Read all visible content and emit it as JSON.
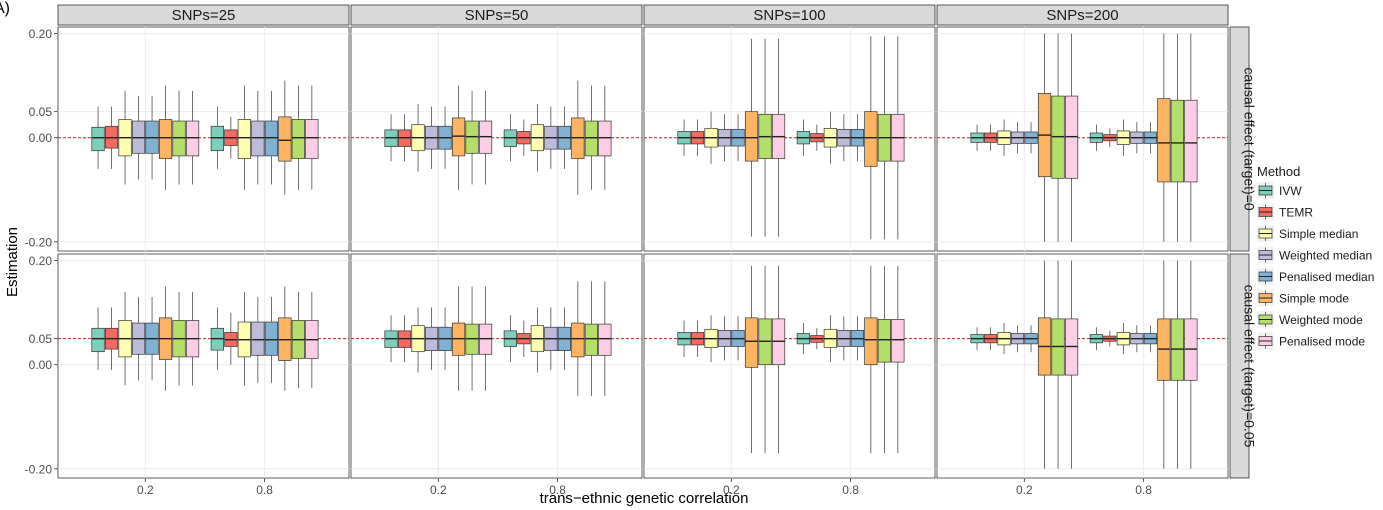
{
  "panel_letter": "A)",
  "chart_data": {
    "type": "boxplot",
    "facet_columns": [
      "SNPs=25",
      "SNPs=50",
      "SNPs=100",
      "SNPs=200"
    ],
    "facet_rows": [
      "causal effect (target)=0",
      "causal effect (target)=0.05"
    ],
    "reference_lines": [
      0.0,
      0.05
    ],
    "x_categories": [
      "0.2",
      "0.8"
    ],
    "xlabel": "trans−ethnic genetic correlation",
    "ylabel": "Estimation",
    "yticks": [
      {
        "value": 0.2,
        "label": "0.20"
      },
      {
        "value": 0.05,
        "label": "0.05"
      },
      {
        "value": 0.0,
        "label": "0.00"
      },
      {
        "value": -0.2,
        "label": "-0.20"
      }
    ],
    "ylim": [
      -0.21,
      0.205
    ],
    "legend": {
      "title": "Method",
      "placement": "right",
      "items": [
        {
          "name": "IVW",
          "color": "#7fcdbb"
        },
        {
          "name": "TEMR",
          "color": "#f26b60"
        },
        {
          "name": "Simple median",
          "color": "#ffffb3"
        },
        {
          "name": "Weighted median",
          "color": "#bebada"
        },
        {
          "name": "Penalised median",
          "color": "#80b1d3"
        },
        {
          "name": "Simple mode",
          "color": "#fdb462"
        },
        {
          "name": "Weighted mode",
          "color": "#b3de69"
        },
        {
          "name": "Penalised mode",
          "color": "#fccde5"
        }
      ]
    },
    "box_summary_note_free": true,
    "boxes": [
      {
        "row": 0,
        "col": 0,
        "x": "0.2",
        "stats": [
          [
            -0.025,
            0.0,
            0.02,
            -0.06,
            0.06
          ],
          [
            -0.02,
            0.0,
            0.022,
            -0.06,
            0.06
          ],
          [
            -0.035,
            0.0,
            0.035,
            -0.09,
            0.09
          ],
          [
            -0.03,
            0.0,
            0.032,
            -0.08,
            0.08
          ],
          [
            -0.03,
            0.0,
            0.032,
            -0.08,
            0.08
          ],
          [
            -0.04,
            0.0,
            0.035,
            -0.1,
            0.1
          ],
          [
            -0.035,
            0.0,
            0.032,
            -0.09,
            0.09
          ],
          [
            -0.035,
            0.0,
            0.032,
            -0.09,
            0.09
          ]
        ]
      },
      {
        "row": 0,
        "col": 0,
        "x": "0.8",
        "stats": [
          [
            -0.025,
            0.0,
            0.022,
            -0.06,
            0.06
          ],
          [
            -0.015,
            0.0,
            0.015,
            -0.04,
            0.04
          ],
          [
            -0.04,
            0.0,
            0.035,
            -0.1,
            0.1
          ],
          [
            -0.035,
            0.0,
            0.032,
            -0.09,
            0.09
          ],
          [
            -0.035,
            0.0,
            0.032,
            -0.09,
            0.09
          ],
          [
            -0.045,
            -0.005,
            0.04,
            -0.11,
            0.11
          ],
          [
            -0.04,
            0.0,
            0.035,
            -0.1,
            0.1
          ],
          [
            -0.04,
            0.0,
            0.035,
            -0.1,
            0.1
          ]
        ]
      },
      {
        "row": 0,
        "col": 1,
        "x": "0.2",
        "stats": [
          [
            -0.017,
            0.0,
            0.015,
            -0.045,
            0.045
          ],
          [
            -0.017,
            0.0,
            0.015,
            -0.045,
            0.045
          ],
          [
            -0.025,
            0.0,
            0.025,
            -0.065,
            0.065
          ],
          [
            -0.022,
            0.0,
            0.022,
            -0.06,
            0.06
          ],
          [
            -0.022,
            0.0,
            0.022,
            -0.06,
            0.06
          ],
          [
            -0.035,
            0.003,
            0.038,
            -0.1,
            0.1
          ],
          [
            -0.03,
            0.002,
            0.032,
            -0.09,
            0.09
          ],
          [
            -0.03,
            0.002,
            0.032,
            -0.09,
            0.09
          ]
        ]
      },
      {
        "row": 0,
        "col": 1,
        "x": "0.8",
        "stats": [
          [
            -0.017,
            0.0,
            0.015,
            -0.045,
            0.045
          ],
          [
            -0.012,
            0.0,
            0.012,
            -0.035,
            0.035
          ],
          [
            -0.025,
            0.0,
            0.025,
            -0.065,
            0.065
          ],
          [
            -0.022,
            0.0,
            0.022,
            -0.06,
            0.06
          ],
          [
            -0.022,
            0.0,
            0.022,
            -0.06,
            0.06
          ],
          [
            -0.04,
            0.0,
            0.038,
            -0.11,
            0.11
          ],
          [
            -0.035,
            0.0,
            0.032,
            -0.1,
            0.1
          ],
          [
            -0.035,
            0.0,
            0.032,
            -0.1,
            0.1
          ]
        ]
      },
      {
        "row": 0,
        "col": 2,
        "x": "0.2",
        "stats": [
          [
            -0.012,
            0.0,
            0.012,
            -0.035,
            0.035
          ],
          [
            -0.012,
            0.0,
            0.012,
            -0.035,
            0.035
          ],
          [
            -0.018,
            0.0,
            0.018,
            -0.05,
            0.05
          ],
          [
            -0.016,
            0.0,
            0.016,
            -0.045,
            0.045
          ],
          [
            -0.016,
            0.0,
            0.016,
            -0.045,
            0.045
          ],
          [
            -0.045,
            0.0,
            0.05,
            -0.19,
            0.19
          ],
          [
            -0.04,
            0.002,
            0.045,
            -0.19,
            0.19
          ],
          [
            -0.04,
            0.002,
            0.045,
            -0.19,
            0.19
          ]
        ]
      },
      {
        "row": 0,
        "col": 2,
        "x": "0.8",
        "stats": [
          [
            -0.012,
            0.0,
            0.012,
            -0.035,
            0.035
          ],
          [
            -0.008,
            0.0,
            0.008,
            -0.025,
            0.025
          ],
          [
            -0.018,
            0.0,
            0.018,
            -0.05,
            0.05
          ],
          [
            -0.016,
            0.0,
            0.016,
            -0.045,
            0.045
          ],
          [
            -0.016,
            0.0,
            0.016,
            -0.045,
            0.045
          ],
          [
            -0.055,
            0.0,
            0.05,
            -0.195,
            0.195
          ],
          [
            -0.045,
            0.0,
            0.045,
            -0.195,
            0.195
          ],
          [
            -0.045,
            0.0,
            0.045,
            -0.195,
            0.195
          ]
        ]
      },
      {
        "row": 0,
        "col": 3,
        "x": "0.2",
        "stats": [
          [
            -0.009,
            0.0,
            0.009,
            -0.025,
            0.025
          ],
          [
            -0.009,
            0.0,
            0.009,
            -0.025,
            0.025
          ],
          [
            -0.013,
            0.0,
            0.013,
            -0.035,
            0.035
          ],
          [
            -0.011,
            0.0,
            0.011,
            -0.03,
            0.03
          ],
          [
            -0.011,
            0.0,
            0.011,
            -0.03,
            0.03
          ],
          [
            -0.075,
            0.005,
            0.085,
            -0.2,
            0.2
          ],
          [
            -0.078,
            0.002,
            0.08,
            -0.2,
            0.2
          ],
          [
            -0.078,
            0.002,
            0.08,
            -0.2,
            0.2
          ]
        ]
      },
      {
        "row": 0,
        "col": 3,
        "x": "0.8",
        "stats": [
          [
            -0.009,
            0.0,
            0.009,
            -0.025,
            0.025
          ],
          [
            -0.006,
            0.0,
            0.006,
            -0.018,
            0.018
          ],
          [
            -0.013,
            0.0,
            0.013,
            -0.035,
            0.035
          ],
          [
            -0.011,
            0.0,
            0.011,
            -0.03,
            0.03
          ],
          [
            -0.011,
            0.0,
            0.011,
            -0.03,
            0.03
          ],
          [
            -0.085,
            -0.01,
            0.075,
            -0.2,
            0.2
          ],
          [
            -0.085,
            -0.01,
            0.072,
            -0.2,
            0.2
          ],
          [
            -0.085,
            -0.01,
            0.072,
            -0.2,
            0.2
          ]
        ]
      },
      {
        "row": 1,
        "col": 0,
        "x": "0.2",
        "stats": [
          [
            0.025,
            0.05,
            0.07,
            -0.01,
            0.11
          ],
          [
            0.03,
            0.05,
            0.07,
            -0.01,
            0.11
          ],
          [
            0.015,
            0.05,
            0.085,
            -0.04,
            0.14
          ],
          [
            0.02,
            0.05,
            0.08,
            -0.03,
            0.13
          ],
          [
            0.02,
            0.05,
            0.08,
            -0.03,
            0.13
          ],
          [
            0.01,
            0.05,
            0.09,
            -0.05,
            0.15
          ],
          [
            0.015,
            0.05,
            0.085,
            -0.04,
            0.14
          ],
          [
            0.015,
            0.05,
            0.085,
            -0.04,
            0.14
          ]
        ]
      },
      {
        "row": 1,
        "col": 0,
        "x": "0.8",
        "stats": [
          [
            0.028,
            0.05,
            0.07,
            -0.01,
            0.11
          ],
          [
            0.035,
            0.048,
            0.062,
            0.0,
            0.1
          ],
          [
            0.015,
            0.048,
            0.082,
            -0.04,
            0.14
          ],
          [
            0.018,
            0.048,
            0.082,
            -0.035,
            0.13
          ],
          [
            0.018,
            0.048,
            0.082,
            -0.035,
            0.13
          ],
          [
            0.008,
            0.048,
            0.09,
            -0.05,
            0.15
          ],
          [
            0.012,
            0.048,
            0.085,
            -0.045,
            0.14
          ],
          [
            0.012,
            0.048,
            0.085,
            -0.045,
            0.14
          ]
        ]
      },
      {
        "row": 1,
        "col": 1,
        "x": "0.2",
        "stats": [
          [
            0.033,
            0.05,
            0.065,
            0.005,
            0.095
          ],
          [
            0.033,
            0.05,
            0.065,
            0.005,
            0.095
          ],
          [
            0.025,
            0.05,
            0.075,
            -0.015,
            0.11
          ],
          [
            0.027,
            0.05,
            0.072,
            -0.01,
            0.11
          ],
          [
            0.027,
            0.05,
            0.072,
            -0.01,
            0.11
          ],
          [
            0.018,
            0.05,
            0.08,
            -0.05,
            0.15
          ],
          [
            0.02,
            0.05,
            0.078,
            -0.05,
            0.15
          ],
          [
            0.02,
            0.05,
            0.078,
            -0.05,
            0.15
          ]
        ]
      },
      {
        "row": 1,
        "col": 1,
        "x": "0.8",
        "stats": [
          [
            0.035,
            0.05,
            0.065,
            0.005,
            0.095
          ],
          [
            0.04,
            0.05,
            0.06,
            0.015,
            0.085
          ],
          [
            0.025,
            0.05,
            0.075,
            -0.015,
            0.11
          ],
          [
            0.027,
            0.05,
            0.072,
            -0.01,
            0.11
          ],
          [
            0.027,
            0.05,
            0.072,
            -0.01,
            0.11
          ],
          [
            0.015,
            0.05,
            0.08,
            -0.06,
            0.16
          ],
          [
            0.018,
            0.05,
            0.078,
            -0.06,
            0.16
          ],
          [
            0.018,
            0.05,
            0.078,
            -0.06,
            0.16
          ]
        ]
      },
      {
        "row": 1,
        "col": 2,
        "x": "0.2",
        "stats": [
          [
            0.038,
            0.05,
            0.062,
            0.015,
            0.085
          ],
          [
            0.038,
            0.05,
            0.062,
            0.015,
            0.085
          ],
          [
            0.033,
            0.05,
            0.068,
            0.005,
            0.095
          ],
          [
            0.035,
            0.05,
            0.066,
            0.008,
            0.093
          ],
          [
            0.035,
            0.05,
            0.066,
            0.008,
            0.093
          ],
          [
            -0.005,
            0.045,
            0.09,
            -0.17,
            0.19
          ],
          [
            0.0,
            0.045,
            0.088,
            -0.17,
            0.19
          ],
          [
            0.0,
            0.045,
            0.088,
            -0.17,
            0.19
          ]
        ]
      },
      {
        "row": 1,
        "col": 2,
        "x": "0.8",
        "stats": [
          [
            0.04,
            0.05,
            0.06,
            0.02,
            0.08
          ],
          [
            0.043,
            0.05,
            0.056,
            0.03,
            0.07
          ],
          [
            0.033,
            0.05,
            0.068,
            0.005,
            0.095
          ],
          [
            0.035,
            0.05,
            0.066,
            0.008,
            0.093
          ],
          [
            0.035,
            0.05,
            0.066,
            0.008,
            0.093
          ],
          [
            0.0,
            0.048,
            0.09,
            -0.17,
            0.19
          ],
          [
            0.005,
            0.048,
            0.087,
            -0.17,
            0.19
          ],
          [
            0.005,
            0.048,
            0.087,
            -0.17,
            0.19
          ]
        ]
      },
      {
        "row": 1,
        "col": 3,
        "x": "0.2",
        "stats": [
          [
            0.042,
            0.05,
            0.058,
            0.028,
            0.072
          ],
          [
            0.042,
            0.05,
            0.058,
            0.028,
            0.072
          ],
          [
            0.038,
            0.05,
            0.062,
            0.02,
            0.08
          ],
          [
            0.04,
            0.05,
            0.06,
            0.024,
            0.076
          ],
          [
            0.04,
            0.05,
            0.06,
            0.024,
            0.076
          ],
          [
            -0.02,
            0.035,
            0.09,
            -0.2,
            0.2
          ],
          [
            -0.02,
            0.035,
            0.088,
            -0.2,
            0.2
          ],
          [
            -0.02,
            0.035,
            0.088,
            -0.2,
            0.2
          ]
        ]
      },
      {
        "row": 1,
        "col": 3,
        "x": "0.8",
        "stats": [
          [
            0.042,
            0.05,
            0.058,
            0.028,
            0.072
          ],
          [
            0.045,
            0.05,
            0.055,
            0.035,
            0.065
          ],
          [
            0.038,
            0.05,
            0.062,
            0.02,
            0.08
          ],
          [
            0.04,
            0.05,
            0.06,
            0.024,
            0.076
          ],
          [
            0.04,
            0.05,
            0.06,
            0.024,
            0.076
          ],
          [
            -0.03,
            0.03,
            0.088,
            -0.2,
            0.2
          ],
          [
            -0.03,
            0.03,
            0.088,
            -0.2,
            0.2
          ],
          [
            -0.03,
            0.03,
            0.088,
            -0.2,
            0.2
          ]
        ]
      }
    ]
  }
}
